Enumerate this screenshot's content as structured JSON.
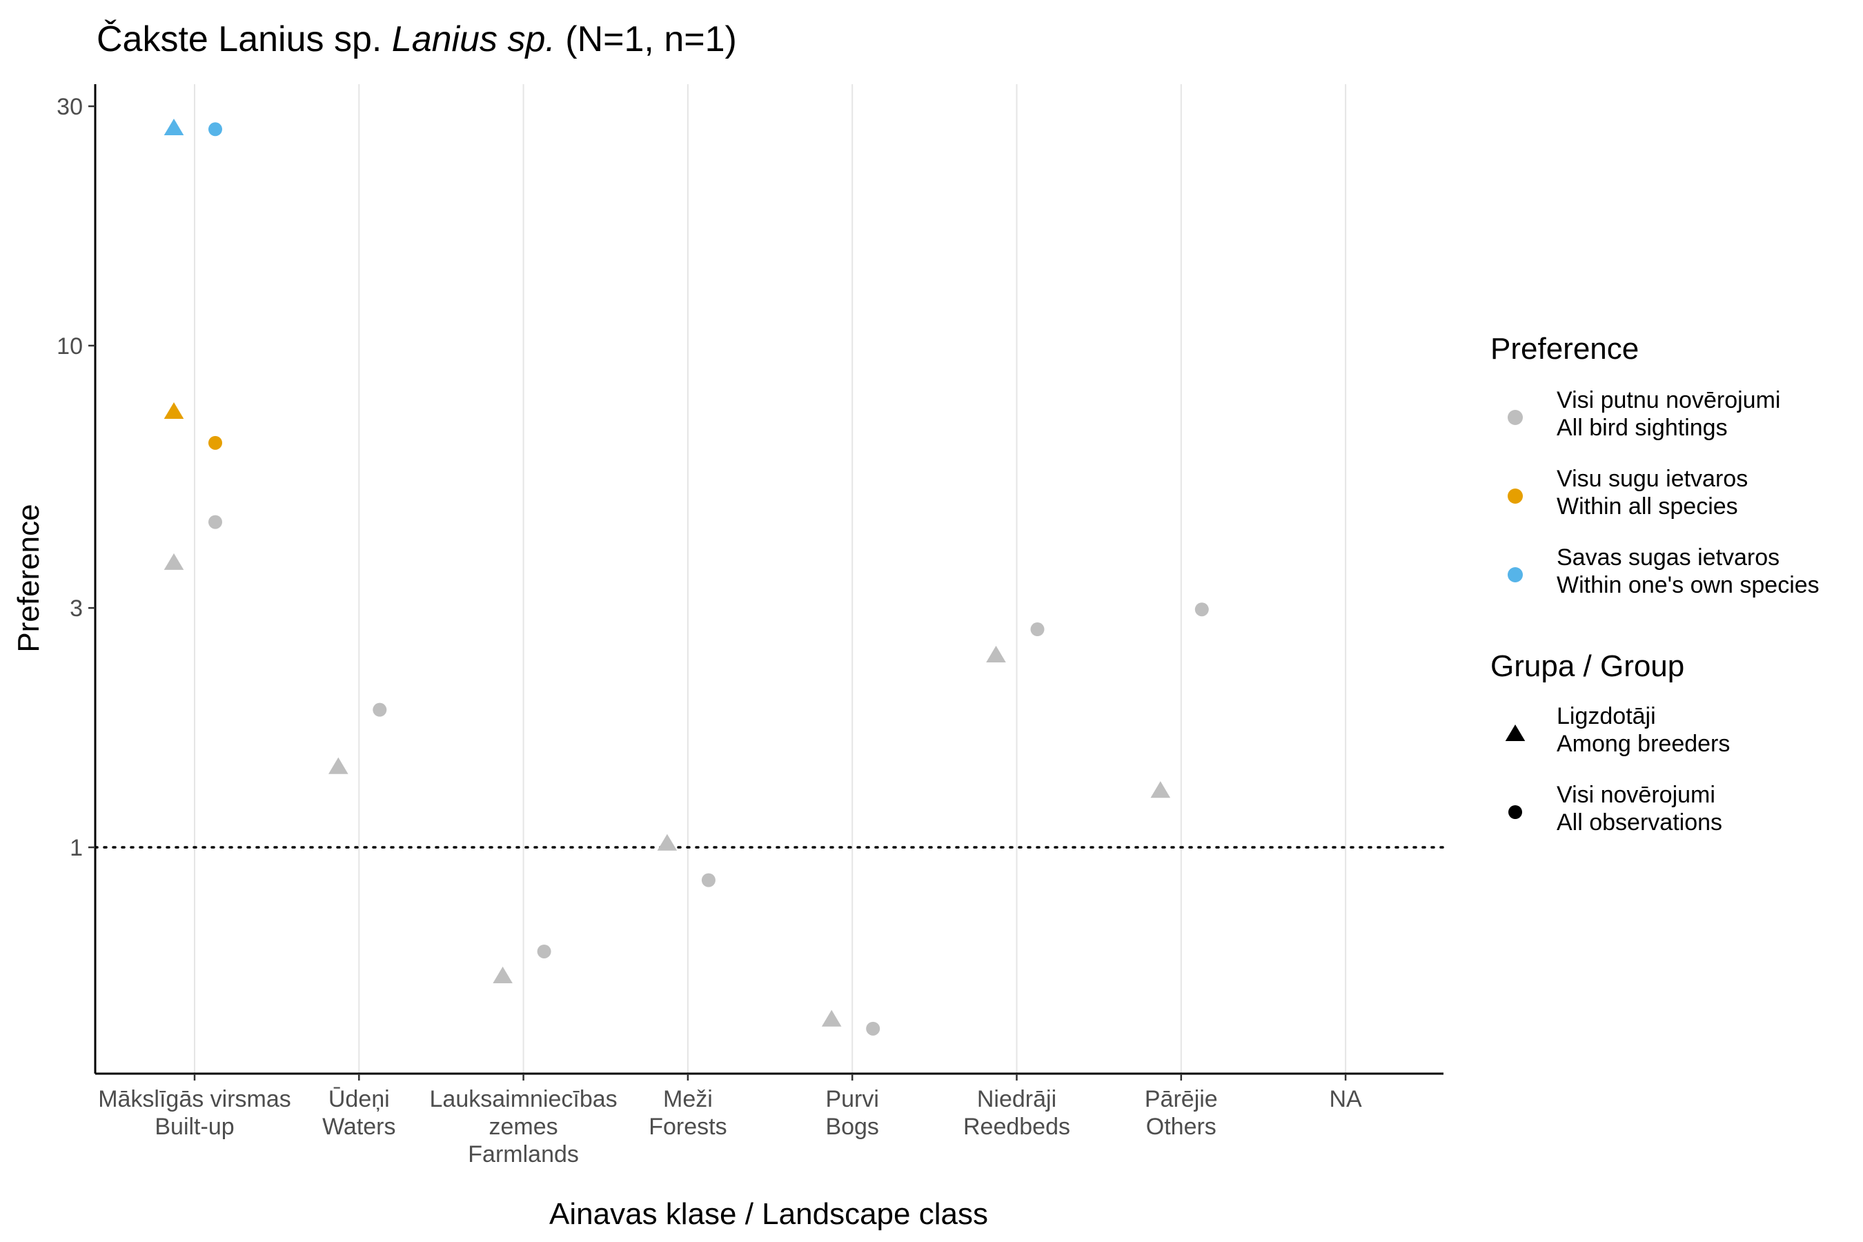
{
  "chart_data": {
    "type": "scatter",
    "title_parts": {
      "prefix": "Čakste Lanius sp. ",
      "italic": "Lanius sp.",
      "suffix": " (N=1, n=1)"
    },
    "xlabel": "Ainavas klase / Landscape class",
    "ylabel": "Preference",
    "y_scale": "log",
    "ylim": [
      0.36,
      34
    ],
    "y_ticks": [
      1,
      3,
      10,
      30
    ],
    "reference_line": 1,
    "grid": "vertical major",
    "categories": [
      [
        "Mākslīgās virsmas",
        "Built-up"
      ],
      [
        "Ūdeņi",
        "Waters"
      ],
      [
        "Lauksaimniecības",
        "zemes",
        "Farmlands"
      ],
      [
        "Meži",
        "Forests"
      ],
      [
        "Purvi",
        "Bogs"
      ],
      [
        "Niedrāji",
        "Reedbeds"
      ],
      [
        "Pārējie",
        "Others"
      ],
      [
        "NA"
      ]
    ],
    "series": [
      {
        "preference": "all_sightings",
        "group": "breeders",
        "category_index": 0,
        "y": 3.7
      },
      {
        "preference": "all_sightings",
        "group": "all_obs",
        "category_index": 0,
        "y": 4.45
      },
      {
        "preference": "within_all_species",
        "group": "breeders",
        "category_index": 0,
        "y": 7.4
      },
      {
        "preference": "within_all_species",
        "group": "all_obs",
        "category_index": 0,
        "y": 6.4
      },
      {
        "preference": "within_own_species",
        "group": "breeders",
        "category_index": 0,
        "y": 27.2
      },
      {
        "preference": "within_own_species",
        "group": "all_obs",
        "category_index": 0,
        "y": 27.0
      },
      {
        "preference": "all_sightings",
        "group": "breeders",
        "category_index": 1,
        "y": 1.45
      },
      {
        "preference": "all_sightings",
        "group": "all_obs",
        "category_index": 1,
        "y": 1.88
      },
      {
        "preference": "all_sightings",
        "group": "breeders",
        "category_index": 2,
        "y": 0.555
      },
      {
        "preference": "all_sightings",
        "group": "all_obs",
        "category_index": 2,
        "y": 0.62
      },
      {
        "preference": "all_sightings",
        "group": "breeders",
        "category_index": 3,
        "y": 1.02
      },
      {
        "preference": "all_sightings",
        "group": "all_obs",
        "category_index": 3,
        "y": 0.86
      },
      {
        "preference": "all_sightings",
        "group": "breeders",
        "category_index": 4,
        "y": 0.455
      },
      {
        "preference": "all_sightings",
        "group": "all_obs",
        "category_index": 4,
        "y": 0.435
      },
      {
        "preference": "all_sightings",
        "group": "breeders",
        "category_index": 5,
        "y": 2.42
      },
      {
        "preference": "all_sightings",
        "group": "all_obs",
        "category_index": 5,
        "y": 2.72
      },
      {
        "preference": "all_sightings",
        "group": "breeders",
        "category_index": 6,
        "y": 1.3
      },
      {
        "preference": "all_sightings",
        "group": "all_obs",
        "category_index": 6,
        "y": 2.98
      }
    ],
    "legend": {
      "placement": "right",
      "preference_title": "Preference",
      "preference_items": [
        {
          "key": "all_sightings",
          "line1": "Visi putnu novērojumi",
          "line2": "All bird sightings",
          "color": "#bebebe"
        },
        {
          "key": "within_all_species",
          "line1": "Visu sugu ietvaros",
          "line2": "Within all species",
          "color": "#e69f00"
        },
        {
          "key": "within_own_species",
          "line1": "Savas sugas ietvaros",
          "line2": "Within one's own species",
          "color": "#56b4e9"
        }
      ],
      "group_title": "Grupa / Group",
      "group_items": [
        {
          "key": "breeders",
          "shape": "triangle",
          "line1": "Ligzdotāji",
          "line2": "Among breeders"
        },
        {
          "key": "all_obs",
          "shape": "circle",
          "line1": "Visi novērojumi",
          "line2": "All observations"
        }
      ]
    }
  }
}
